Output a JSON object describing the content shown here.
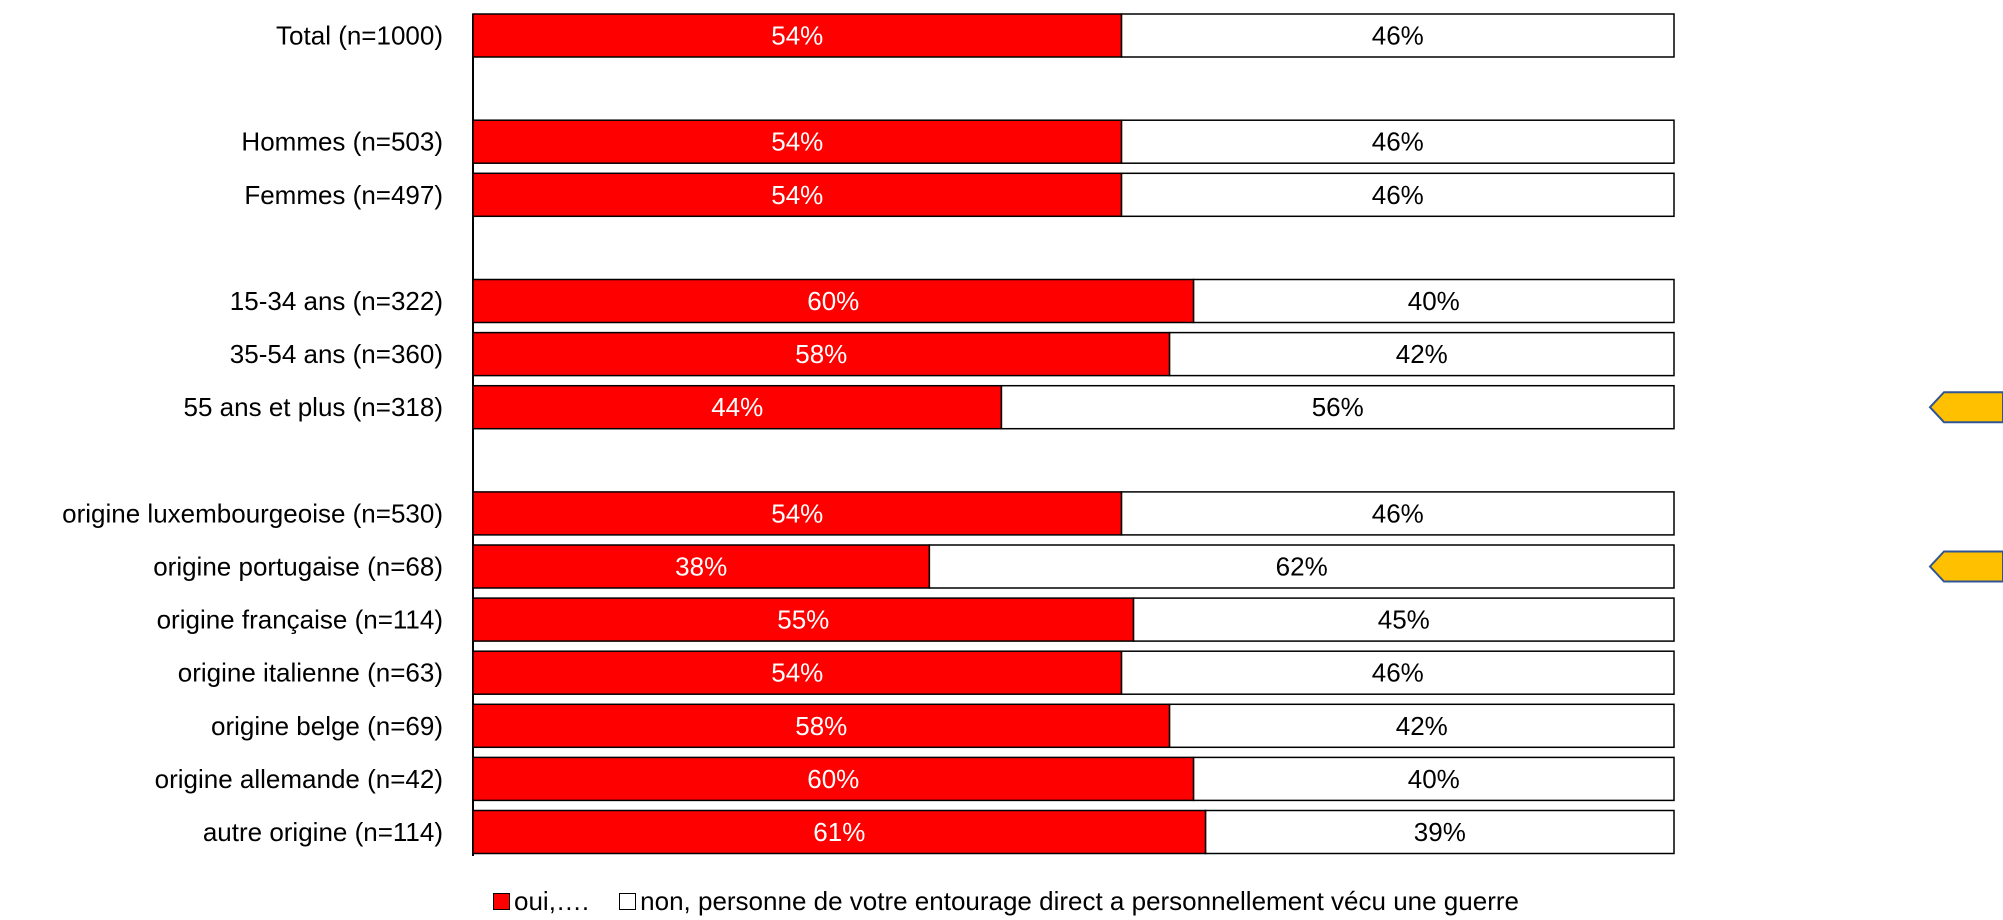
{
  "chart_data": {
    "type": "bar",
    "orientation": "horizontal",
    "stacked": true,
    "categories": [
      "Total (n=1000)",
      "Hommes (n=503)",
      "Femmes (n=497)",
      "15-34 ans (n=322)",
      "35-54 ans (n=360)",
      "55 ans et plus (n=318)",
      "origine luxembourgeoise (n=530)",
      "origine portugaise (n=68)",
      "origine française (n=114)",
      "origine italienne (n=63)",
      "origine belge (n=69)",
      "origine allemande (n=42)",
      "autre origine  (n=114)"
    ],
    "series": [
      {
        "name": "oui,….",
        "color": "#ff0000",
        "values": [
          54,
          54,
          54,
          60,
          58,
          44,
          54,
          38,
          55,
          54,
          58,
          60,
          61
        ],
        "labels": [
          "54%",
          "54%",
          "54%",
          "60%",
          "58%",
          "44%",
          "54%",
          "38%",
          "55%",
          "54%",
          "58%",
          "60%",
          "61%"
        ]
      },
      {
        "name": "non, personne de votre entourage direct a personnellement vécu une guerre",
        "color": "#ffffff",
        "values": [
          46,
          46,
          46,
          40,
          42,
          56,
          46,
          62,
          45,
          46,
          42,
          40,
          39
        ],
        "labels": [
          "46%",
          "46%",
          "46%",
          "40%",
          "42%",
          "56%",
          "46%",
          "62%",
          "45%",
          "46%",
          "42%",
          "40%",
          "39%"
        ]
      }
    ],
    "xlim": [
      0,
      100
    ],
    "grid": false,
    "legend_position": "bottom",
    "highlight_markers": [
      "55 ans et plus (n=318)",
      "origine portugaise (n=68)"
    ],
    "marker_color": "#ffc000"
  }
}
